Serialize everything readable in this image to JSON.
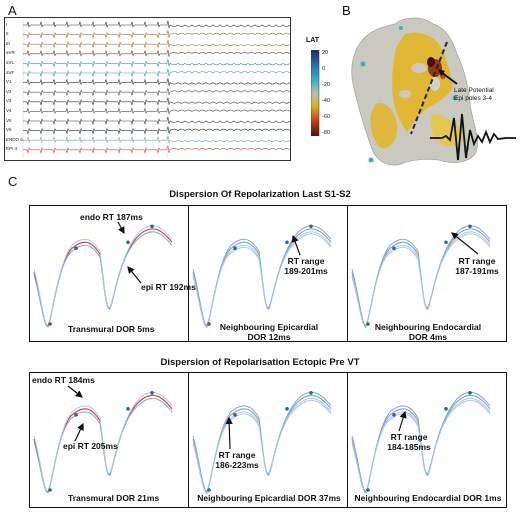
{
  "panels": {
    "a": {
      "label": "A",
      "leads": [
        "I",
        "II",
        "III",
        "aVR",
        "aVL",
        "aVF",
        "V1",
        "V2",
        "V3",
        "V4",
        "V5",
        "V6",
        "ENDO 6",
        "EPI 4"
      ]
    },
    "b": {
      "label": "B",
      "colorbar_title": "LAT",
      "colorbar_ticks": [
        "20",
        "0",
        "-20",
        "-40",
        "-60",
        "-80"
      ],
      "colorbar_colors": [
        "#1a2a6b",
        "#2a6fb0",
        "#32b2c8",
        "#b8b8b0",
        "#e0b020",
        "#c8401a",
        "#5a0d0d"
      ],
      "annotation_lines": [
        "Late Potential",
        "Epi poles 3-4"
      ]
    },
    "c": {
      "label": "C",
      "title_top": "Dispersion Of Repolarization Last S1-S2",
      "title_bottom": "Dispersion of Repolarisation Ectopic Pre VT",
      "top_row": [
        {
          "ann1": "endo RT 187ms",
          "ann2": "epi RT 192ms",
          "caption": "Transmural DOR 5ms"
        },
        {
          "ann1a": "RT range",
          "ann1b": "189-201ms",
          "caption1": "Neighbouring Epicardial",
          "caption2": "DOR 12ms"
        },
        {
          "ann1a": "RT range",
          "ann1b": "187-191ms",
          "caption1": "Neighbouring Endocardial",
          "caption2": "DOR 4ms"
        }
      ],
      "bottom_row": [
        {
          "ann1": "endo RT 184ms",
          "ann2": "epi RT 205ms",
          "caption": "Transmural DOR 21ms"
        },
        {
          "ann1a": "RT range",
          "ann1b": "186-223ms",
          "caption": "Neighbouring Epicardial DOR 37ms"
        },
        {
          "ann1a": "RT range",
          "ann1b": "184-185ms",
          "caption": "Neighbouring Endocardial DOR 1ms"
        }
      ]
    }
  },
  "colors": {
    "trace_red": "#d9443a",
    "trace_blue": "#7fa7d8",
    "trace_lightblue": "#aac8e8",
    "marker": "#1d6f8a"
  }
}
